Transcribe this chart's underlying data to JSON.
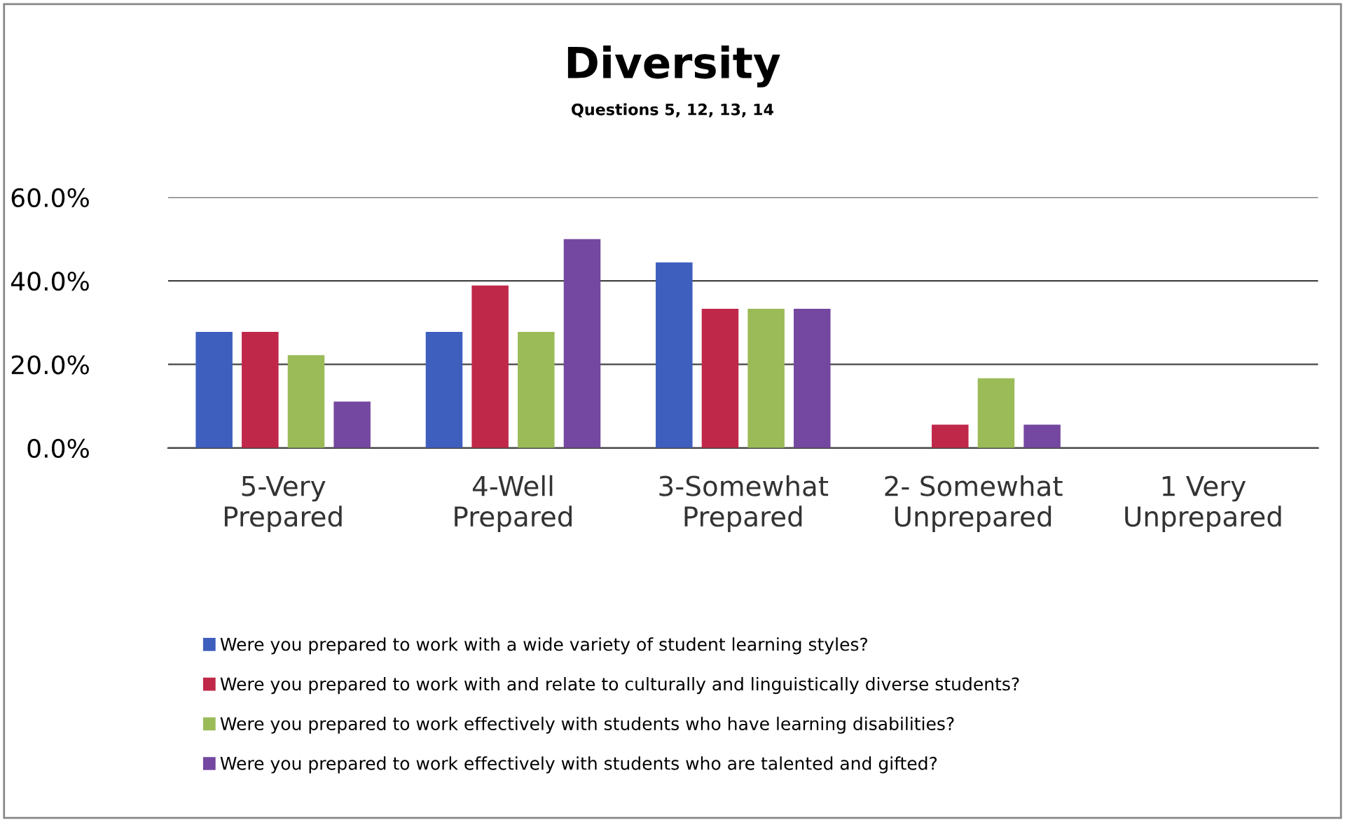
{
  "chart_data": {
    "type": "bar",
    "title": "Diversity",
    "subtitle": "Questions 5, 12, 13, 14",
    "categories": [
      "5-Very\nPrepared",
      "4-Well\nPrepared",
      "3-Somewhat\nPrepared",
      "2- Somewhat\nUnprepared",
      "1 Very\nUnprepared"
    ],
    "series": [
      {
        "name": "Were you prepared to work with a wide variety of student learning styles?",
        "color": "#3f5fbf",
        "values": [
          27.8,
          27.8,
          44.4,
          0,
          0
        ]
      },
      {
        "name": "Were you prepared to work with and relate to culturally and linguistically diverse students?",
        "color": "#c0284a",
        "values": [
          27.8,
          38.9,
          33.3,
          5.6,
          0
        ]
      },
      {
        "name": "Were you prepared to work effectively with students who have learning disabilities?",
        "color": "#9bbb59",
        "values": [
          22.2,
          27.8,
          33.3,
          16.7,
          0
        ]
      },
      {
        "name": "Were you prepared to work effectively with students who are talented and gifted?",
        "color": "#7448a0",
        "values": [
          11.1,
          50.0,
          33.3,
          5.6,
          0
        ]
      }
    ],
    "ylim": [
      0,
      60
    ],
    "yticks": [
      {
        "value": 0,
        "label": "0.0%"
      },
      {
        "value": 20,
        "label": "20.0%"
      },
      {
        "value": 40,
        "label": "40.0%"
      },
      {
        "value": 60,
        "label": "60.0%"
      }
    ],
    "grid": "y",
    "legend": "bottom"
  }
}
